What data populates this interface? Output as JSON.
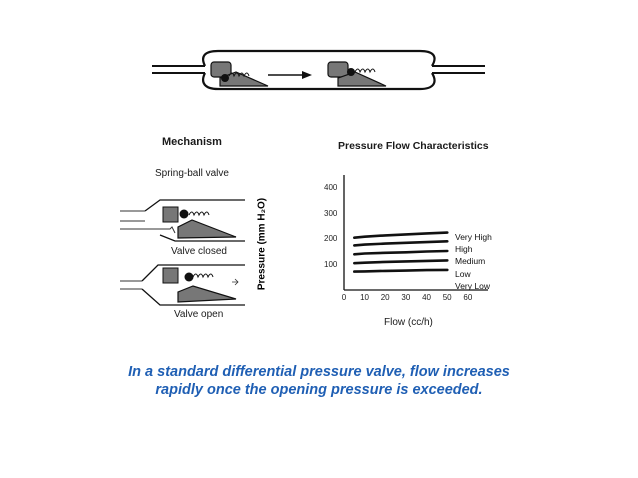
{
  "labels": {
    "mechanism": "Mechanism",
    "spring_ball_valve": "Spring-ball valve",
    "valve_closed": "Valve closed",
    "valve_open": "Valve open"
  },
  "chart_data": {
    "type": "line",
    "title": "Pressure Flow Characteristics",
    "xlabel": "Flow (cc/h)",
    "ylabel": "Pressure (mm H₂O)",
    "xlim": [
      0,
      60
    ],
    "ylim": [
      0,
      420
    ],
    "x_ticks": [
      "0",
      "10",
      "20",
      "30",
      "40",
      "50",
      "60"
    ],
    "y_ticks": [
      "100",
      "200",
      "300",
      "400"
    ],
    "x": [
      5,
      10,
      20,
      30,
      40,
      50
    ],
    "series": [
      {
        "name": "Very High",
        "values": [
          205,
          209,
          214,
          218,
          222,
          225
        ]
      },
      {
        "name": "High",
        "values": [
          175,
          178,
          182,
          185,
          188,
          191
        ]
      },
      {
        "name": "Medium",
        "values": [
          140,
          143,
          146,
          148,
          151,
          153
        ]
      },
      {
        "name": "Low",
        "values": [
          105,
          107,
          110,
          112,
          114,
          116
        ]
      },
      {
        "name": "Very Low",
        "values": [
          72,
          73,
          75,
          76,
          78,
          79
        ]
      }
    ]
  },
  "caption": "In a standard differential pressure valve, flow increases rapidly once the opening pressure is exceeded.",
  "colors": {
    "caption": "#1f5fb4",
    "valve_fill": "#777777",
    "line": "#111111"
  }
}
